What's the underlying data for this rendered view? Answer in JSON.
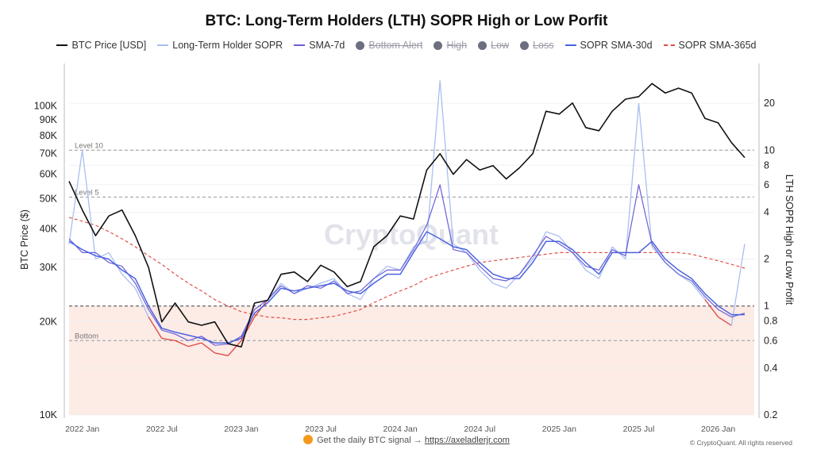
{
  "chart_data": {
    "type": "line",
    "title": "BTC: Long-Term Holders (LTH) SOPR High or Low Porfit",
    "ylabel_left": "BTC Price ($)",
    "ylabel_right": "LTH SOPR High or Low Profit",
    "left_axis": {
      "scale": "log",
      "range": [
        10000,
        137000
      ],
      "ticks": [
        10000,
        20000,
        30000,
        40000,
        50000,
        60000,
        70000,
        80000,
        90000,
        100000
      ],
      "tick_labels": [
        "10K",
        "20K",
        "30K",
        "40K",
        "50K",
        "60K",
        "70K",
        "80K",
        "90K",
        "100K"
      ]
    },
    "right_axis": {
      "scale": "log",
      "range": [
        0.2,
        36
      ],
      "ticks": [
        0.2,
        0.4,
        0.6,
        0.8,
        1,
        2,
        4,
        6,
        8,
        10,
        20
      ],
      "tick_labels": [
        "0.2",
        "0.4",
        "0.6",
        "0.8",
        "1",
        "2",
        "4",
        "6",
        "8",
        "10",
        "20"
      ]
    },
    "x_axis": {
      "range": [
        "2021-12",
        "2026-03"
      ],
      "ticks": [
        "2022-01",
        "2022-07",
        "2023-01",
        "2023-07",
        "2024-01",
        "2024-07",
        "2025-01",
        "2025-07",
        "2026-01"
      ],
      "tick_labels": [
        "2022 Jan",
        "2022 Jul",
        "2023 Jan",
        "2023 Jul",
        "2024 Jan",
        "2024 Jul",
        "2025 Jan",
        "2025 Jul",
        "2026 Jan"
      ]
    },
    "grid": true,
    "legend_position": "top",
    "reference_lines": [
      {
        "label": "Level 10",
        "value": 10
      },
      {
        "label": "Level 5",
        "value": 5
      },
      {
        "label": "",
        "value": 1
      },
      {
        "label": "Bottom",
        "value": 0.6
      }
    ],
    "loss_zone_below": 1,
    "legend": [
      {
        "name": "BTC Price [USD]",
        "kind": "line",
        "color": "#111111",
        "active": true
      },
      {
        "name": "Long-Term Holder SOPR",
        "kind": "line",
        "color": "#a9bff0",
        "active": true
      },
      {
        "name": "SMA-7d",
        "kind": "line",
        "color": "#6a5fd8",
        "active": true
      },
      {
        "name": "Bottom Alert",
        "kind": "dot",
        "color": "#6b6f80",
        "active": false
      },
      {
        "name": "High",
        "kind": "dot",
        "color": "#6b6f80",
        "active": false
      },
      {
        "name": "Low",
        "kind": "dot",
        "color": "#6b6f80",
        "active": false
      },
      {
        "name": "Loss",
        "kind": "dot",
        "color": "#6b6f80",
        "active": false
      },
      {
        "name": "SOPR SMA-30d",
        "kind": "line",
        "color": "#4a63e0",
        "active": true
      },
      {
        "name": "SOPR SMA-365d",
        "kind": "dashed",
        "color": "#e0504a",
        "active": true
      }
    ],
    "dates": [
      "2021-12",
      "2022-01",
      "2022-02",
      "2022-03",
      "2022-04",
      "2022-05",
      "2022-06",
      "2022-07",
      "2022-08",
      "2022-09",
      "2022-10",
      "2022-11",
      "2022-12",
      "2023-01",
      "2023-02",
      "2023-03",
      "2023-04",
      "2023-05",
      "2023-06",
      "2023-07",
      "2023-08",
      "2023-09",
      "2023-10",
      "2023-11",
      "2023-12",
      "2024-01",
      "2024-02",
      "2024-03",
      "2024-04",
      "2024-05",
      "2024-06",
      "2024-07",
      "2024-08",
      "2024-09",
      "2024-10",
      "2024-11",
      "2024-12",
      "2025-01",
      "2025-02",
      "2025-03",
      "2025-04",
      "2025-05",
      "2025-06",
      "2025-07",
      "2025-08",
      "2025-09",
      "2025-10",
      "2025-11",
      "2025-12",
      "2026-01",
      "2026-02",
      "2026-03"
    ],
    "series": [
      {
        "name": "BTC Price [USD]",
        "axis": "left",
        "values": [
          57000,
          46000,
          38000,
          44000,
          46000,
          38000,
          30000,
          20000,
          23000,
          20000,
          19500,
          20000,
          17000,
          16600,
          23000,
          23500,
          28500,
          29000,
          27000,
          30500,
          29000,
          26000,
          27000,
          35000,
          38000,
          44000,
          43000,
          62000,
          70000,
          60000,
          67000,
          62000,
          64000,
          58000,
          63000,
          70000,
          96000,
          94000,
          102000,
          85000,
          83000,
          96000,
          105000,
          107000,
          118000,
          110000,
          114000,
          110000,
          91000,
          88000,
          76000,
          68000
        ]
      },
      {
        "name": "Long-Term Holder SOPR",
        "axis": "right",
        "values": [
          2.5,
          10,
          2.0,
          2.2,
          1.6,
          1.3,
          0.85,
          0.62,
          0.6,
          0.55,
          0.58,
          0.5,
          0.48,
          0.6,
          0.85,
          1.1,
          1.4,
          1.2,
          1.3,
          1.4,
          1.5,
          1.2,
          1.1,
          1.5,
          1.8,
          1.7,
          2.4,
          2.6,
          28,
          2.5,
          2.2,
          1.7,
          1.4,
          1.3,
          1.6,
          2.0,
          3.0,
          2.8,
          2.2,
          1.7,
          1.5,
          2.4,
          2.0,
          20,
          2.4,
          1.9,
          1.6,
          1.4,
          1.1,
          0.85,
          0.75,
          2.5
        ]
      },
      {
        "name": "SMA-7d",
        "axis": "right",
        "values": [
          2.7,
          2.2,
          2.2,
          1.9,
          1.8,
          1.4,
          0.95,
          0.7,
          0.66,
          0.6,
          0.64,
          0.56,
          0.57,
          0.64,
          0.95,
          1.1,
          1.35,
          1.2,
          1.35,
          1.3,
          1.45,
          1.2,
          1.25,
          1.5,
          1.7,
          1.7,
          2.3,
          3.3,
          6.0,
          2.3,
          2.2,
          1.8,
          1.5,
          1.45,
          1.6,
          2.1,
          2.8,
          2.5,
          2.2,
          1.8,
          1.7,
          2.3,
          2.1,
          6.0,
          2.5,
          1.9,
          1.6,
          1.45,
          1.15,
          0.95,
          0.85,
          0.9
        ]
      },
      {
        "name": "SOPR SMA-30d",
        "axis": "right",
        "values": [
          2.6,
          2.3,
          2.1,
          2.0,
          1.7,
          1.5,
          1.0,
          0.72,
          0.68,
          0.65,
          0.62,
          0.58,
          0.58,
          0.62,
          0.9,
          1.05,
          1.3,
          1.25,
          1.3,
          1.35,
          1.4,
          1.25,
          1.2,
          1.4,
          1.6,
          1.6,
          2.2,
          3.0,
          2.7,
          2.4,
          2.3,
          1.9,
          1.6,
          1.5,
          1.5,
          1.9,
          2.6,
          2.6,
          2.3,
          1.9,
          1.6,
          2.2,
          2.2,
          2.2,
          2.6,
          2.0,
          1.7,
          1.5,
          1.2,
          1.0,
          0.88,
          0.88
        ]
      },
      {
        "name": "SOPR SMA-365d",
        "axis": "right",
        "values": [
          3.7,
          3.5,
          3.3,
          3.0,
          2.7,
          2.4,
          2.1,
          1.85,
          1.6,
          1.4,
          1.25,
          1.1,
          1.0,
          0.92,
          0.88,
          0.85,
          0.84,
          0.82,
          0.82,
          0.84,
          0.86,
          0.9,
          0.95,
          1.05,
          1.15,
          1.25,
          1.35,
          1.5,
          1.6,
          1.7,
          1.8,
          1.9,
          1.95,
          2.0,
          2.05,
          2.1,
          2.15,
          2.2,
          2.2,
          2.2,
          2.2,
          2.2,
          2.2,
          2.2,
          2.2,
          2.2,
          2.2,
          2.15,
          2.05,
          1.95,
          1.85,
          1.75
        ]
      }
    ]
  },
  "watermark": "CryptoQuant",
  "footer": {
    "text": "Get the daily BTC signal →",
    "link": "https://axeladlerjr.com",
    "copyright": "© CryptoQuant. All rights reserved"
  }
}
